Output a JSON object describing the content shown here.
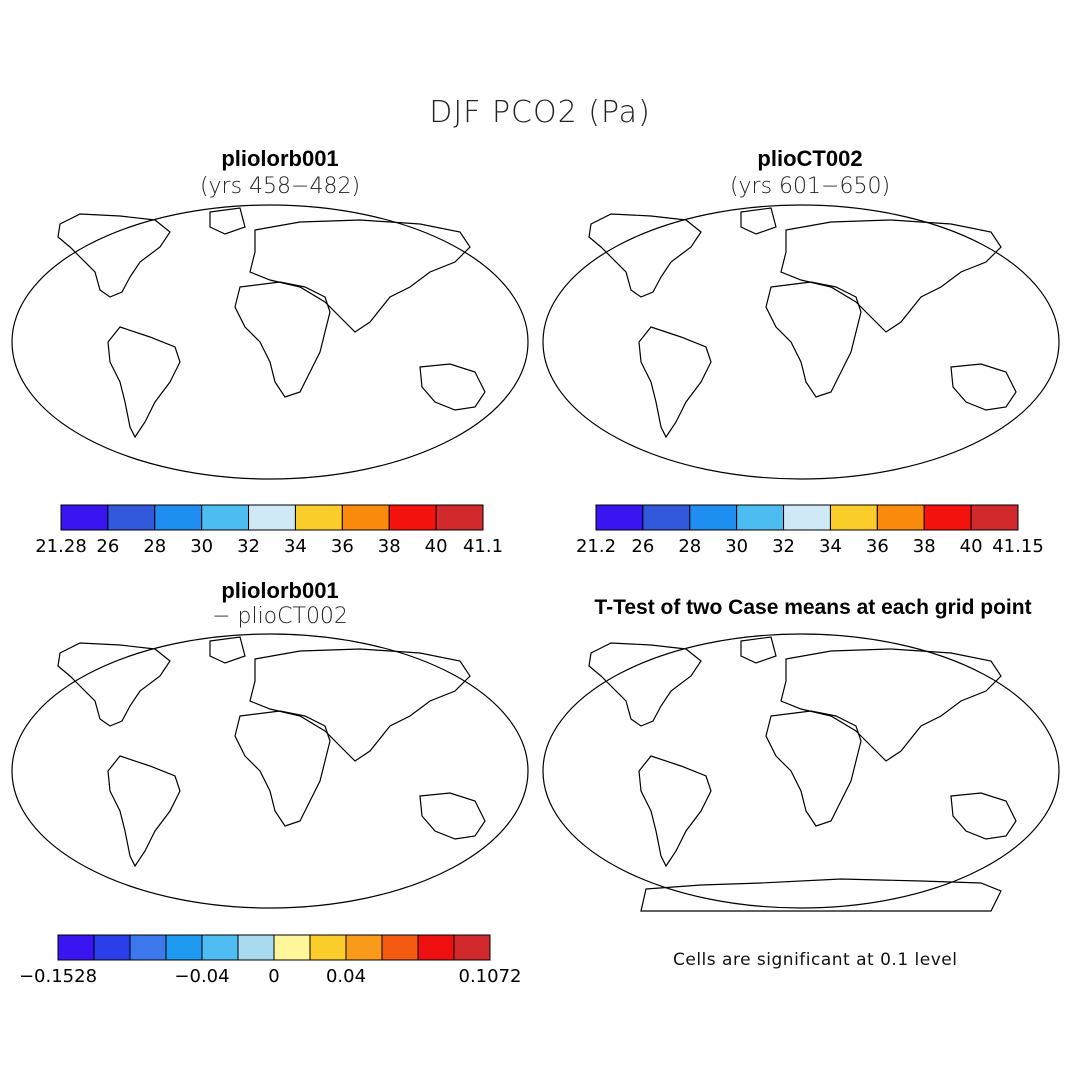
{
  "figure": {
    "title": "DJF PCO2 (Pa)"
  },
  "panels": [
    {
      "title": "pliolorb001",
      "subtitle": "(yrs 458−482)"
    },
    {
      "title": "plioCT002",
      "subtitle": "(yrs 601−650)"
    },
    {
      "title": "pliolorb001",
      "subtitle": "− plioCT002"
    },
    {
      "title": "T-Test of two Case means at each grid point",
      "subtitle": ""
    }
  ],
  "colorbars": [
    {
      "colors": [
        "#3b14f2",
        "#3258dc",
        "#1e8ef0",
        "#4dbcf0",
        "#cfe9f7",
        "#fbcd2a",
        "#f98a0c",
        "#f5130f",
        "#d2292c"
      ],
      "labels": [
        "21.28",
        "26",
        "28",
        "30",
        "32",
        "34",
        "36",
        "38",
        "40",
        "41.1"
      ]
    },
    {
      "colors": [
        "#3b14f2",
        "#3258dc",
        "#1e8ef0",
        "#4dbcf0",
        "#cfe9f7",
        "#fbcd2a",
        "#f98a0c",
        "#f5130f",
        "#d2292c"
      ],
      "labels": [
        "21.2",
        "26",
        "28",
        "30",
        "32",
        "34",
        "36",
        "38",
        "40",
        "41.15"
      ]
    },
    {
      "colors": [
        "#3b14f2",
        "#2a3fea",
        "#3c78ec",
        "#1e9af0",
        "#4fbdf2",
        "#a9dbf0",
        "#fff59a",
        "#fbcd2a",
        "#f99a1a",
        "#f45a10",
        "#ee1010",
        "#d2292c"
      ],
      "labels": [
        "−0.1528",
        "−0.04",
        "0",
        "0.04",
        "0.1072"
      ]
    }
  ],
  "footnote": "Cells are significant at 0.1 level"
}
